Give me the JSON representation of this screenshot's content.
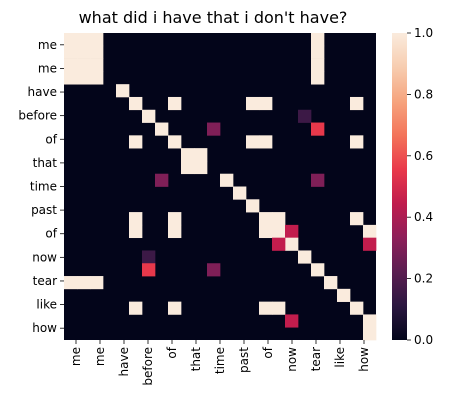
{
  "chart_data": {
    "type": "heatmap",
    "title": "what did i have that i don't have?",
    "xlabel": "",
    "ylabel": "",
    "x_labels": [
      "me",
      "me",
      "have",
      "before",
      "of",
      "that",
      "time",
      "past",
      "of",
      "now",
      "tear",
      "like",
      "how"
    ],
    "y_labels": [
      "me",
      "me",
      "have",
      "before",
      "of",
      "that",
      "time",
      "past",
      "of",
      "now",
      "tear",
      "like",
      "how"
    ],
    "columns": 24,
    "column_token_index": [
      0,
      0,
      0,
      0,
      1,
      2,
      3,
      4,
      5,
      6,
      6,
      7,
      8,
      9,
      10,
      10,
      11,
      12,
      13,
      14,
      15,
      16,
      17,
      18
    ],
    "rows": 24,
    "row_token_index": [
      0,
      0,
      0,
      0,
      1,
      2,
      3,
      4,
      5,
      6,
      6,
      7,
      8,
      9,
      10,
      10,
      11,
      12,
      13,
      14,
      15,
      16,
      17,
      18
    ],
    "cells": [
      [
        0,
        0,
        1
      ],
      [
        0,
        1,
        1
      ],
      [
        0,
        2,
        1
      ],
      [
        0,
        19,
        1
      ],
      [
        1,
        0,
        1
      ],
      [
        1,
        1,
        1
      ],
      [
        1,
        2,
        1
      ],
      [
        1,
        19,
        1
      ],
      [
        2,
        0,
        1
      ],
      [
        2,
        1,
        1
      ],
      [
        2,
        2,
        1
      ],
      [
        2,
        19,
        1
      ],
      [
        3,
        0,
        1
      ],
      [
        3,
        1,
        1
      ],
      [
        3,
        2,
        1
      ],
      [
        3,
        19,
        1
      ],
      [
        4,
        4,
        1
      ],
      [
        5,
        5,
        1
      ],
      [
        5,
        8,
        1
      ],
      [
        5,
        14,
        1
      ],
      [
        5,
        15,
        1
      ],
      [
        5,
        22,
        1
      ],
      [
        6,
        6,
        1
      ],
      [
        6,
        18,
        0.15
      ],
      [
        7,
        7,
        1
      ],
      [
        7,
        11,
        0.3
      ],
      [
        7,
        19,
        0.55
      ],
      [
        8,
        5,
        1
      ],
      [
        8,
        8,
        1
      ],
      [
        8,
        14,
        1
      ],
      [
        8,
        15,
        1
      ],
      [
        8,
        22,
        1
      ],
      [
        9,
        9,
        1
      ],
      [
        9,
        10,
        1
      ],
      [
        10,
        9,
        1
      ],
      [
        10,
        10,
        1
      ],
      [
        11,
        7,
        0.3
      ],
      [
        11,
        12,
        1
      ],
      [
        11,
        19,
        0.3
      ],
      [
        12,
        13,
        1
      ],
      [
        13,
        14,
        1
      ],
      [
        14,
        5,
        1
      ],
      [
        14,
        8,
        1
      ],
      [
        14,
        15,
        1
      ],
      [
        14,
        16,
        1
      ],
      [
        14,
        22,
        1
      ],
      [
        15,
        5,
        1
      ],
      [
        15,
        8,
        1
      ],
      [
        15,
        15,
        1
      ],
      [
        15,
        16,
        1
      ],
      [
        15,
        17,
        0.45
      ],
      [
        15,
        23,
        1
      ],
      [
        16,
        17,
        1
      ],
      [
        16,
        16,
        0.45
      ],
      [
        16,
        23,
        0.45
      ],
      [
        17,
        6,
        0.15
      ],
      [
        17,
        18,
        1
      ],
      [
        18,
        6,
        0.55
      ],
      [
        18,
        11,
        0.3
      ],
      [
        18,
        19,
        1
      ],
      [
        19,
        0,
        1
      ],
      [
        19,
        1,
        1
      ],
      [
        19,
        2,
        1
      ],
      [
        19,
        20,
        1
      ],
      [
        20,
        21,
        1
      ],
      [
        21,
        5,
        1
      ],
      [
        21,
        8,
        1
      ],
      [
        21,
        16,
        1
      ],
      [
        21,
        15,
        1
      ],
      [
        21,
        22,
        1
      ],
      [
        22,
        17,
        0.45
      ],
      [
        22,
        23,
        1
      ],
      [
        23,
        23,
        1
      ]
    ],
    "colorbar": {
      "vmin": 0.0,
      "vmax": 1.0,
      "ticks": [
        "0.0",
        "0.2",
        "0.4",
        "0.6",
        "0.8",
        "1.0"
      ]
    },
    "colormap_stops": [
      "#03051a",
      "#2b1740",
      "#5b1e51",
      "#8e1f5a",
      "#c01c4d",
      "#e9394b",
      "#f3745a",
      "#f6a47e",
      "#f7cdb0",
      "#faebdd"
    ]
  }
}
